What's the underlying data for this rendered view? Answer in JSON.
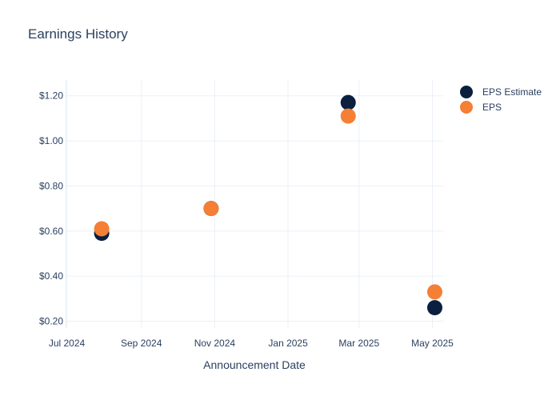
{
  "chart_data": {
    "type": "scatter",
    "title": "Earnings History",
    "xlabel": "Announcement Date",
    "ylabel": "",
    "x_ticks": [
      "Jul 2024",
      "Sep 2024",
      "Nov 2024",
      "Jan 2025",
      "Mar 2025",
      "May 2025"
    ],
    "y_ticks": [
      "$0.20",
      "$0.40",
      "$0.60",
      "$0.80",
      "$1.00",
      "$1.20"
    ],
    "xlim": [
      "2024-06-30",
      "2025-05-10"
    ],
    "ylim": [
      0.17,
      1.27
    ],
    "grid": true,
    "legend_position": "top-right",
    "series": [
      {
        "name": "EPS Estimate",
        "color": "#0b1f3f",
        "points": [
          {
            "x": "2024-07-30",
            "y": 0.59
          },
          {
            "x": "2024-10-29",
            "y": 0.7
          },
          {
            "x": "2025-02-20",
            "y": 1.17
          },
          {
            "x": "2025-05-03",
            "y": 0.26
          }
        ]
      },
      {
        "name": "EPS",
        "color": "#f47f35",
        "points": [
          {
            "x": "2024-07-30",
            "y": 0.61
          },
          {
            "x": "2024-10-29",
            "y": 0.7
          },
          {
            "x": "2025-02-20",
            "y": 1.11
          },
          {
            "x": "2025-05-03",
            "y": 0.33
          }
        ]
      }
    ]
  }
}
